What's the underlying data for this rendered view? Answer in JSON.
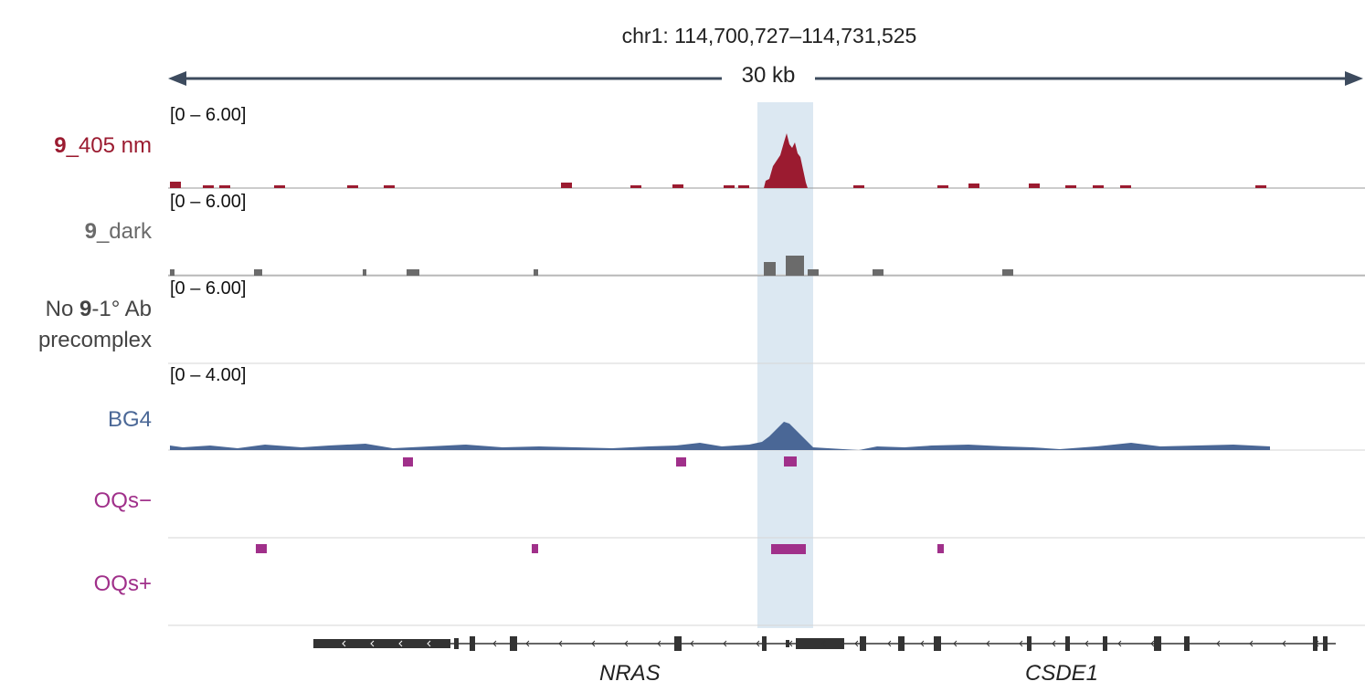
{
  "header": {
    "locus": "chr1: 114,700,727–114,731,525",
    "scale": "30 kb"
  },
  "colors": {
    "track_405": "#9b1b30",
    "track_dark": "#6b6b6b",
    "track_noab": "#444444",
    "track_bg4": "#4a6796",
    "track_oqs": "#a0308a",
    "highlight": "#dce8f2",
    "gene": "#333333"
  },
  "tracks": [
    {
      "id": "t405",
      "label_bold": "9",
      "label_rest": "_405 nm",
      "range": "[0 – 6.00]"
    },
    {
      "id": "tdark",
      "label_bold": "9",
      "label_rest": "_dark",
      "range": "[0 – 6.00]"
    },
    {
      "id": "tnoab",
      "label_pre": "No ",
      "label_bold": "9",
      "label_rest": "-1° Ab",
      "label_line2": "precomplex",
      "range": "[0 – 6.00]"
    },
    {
      "id": "tbg4",
      "label": "BG4",
      "range": "[0 – 4.00]"
    },
    {
      "id": "toqsm",
      "label": "OQs−"
    },
    {
      "id": "toqsp",
      "label": "OQs+"
    }
  ],
  "genes": [
    "NRAS",
    "CSDE1"
  ]
}
